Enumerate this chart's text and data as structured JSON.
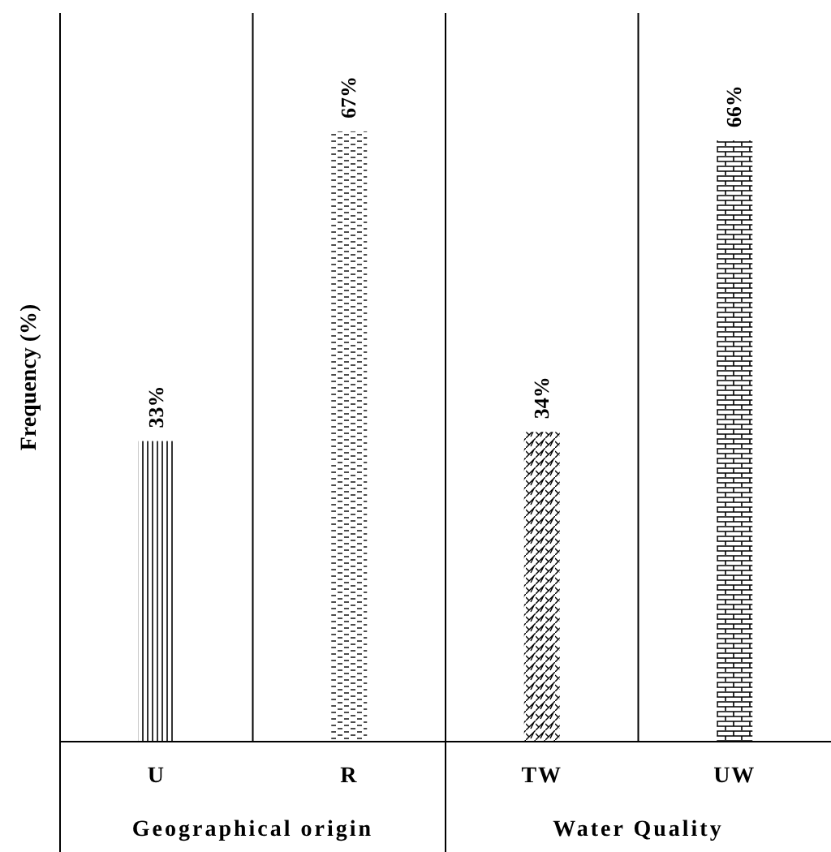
{
  "chart_data": {
    "type": "bar",
    "ylabel": "Frequency (%)",
    "categories": [
      "U",
      "R",
      "TW",
      "UW"
    ],
    "values": [
      33,
      67,
      34,
      66
    ],
    "colors": [
      "#000000",
      "#000000",
      "#000000",
      "#000000"
    ],
    "value_labels": [
      "33%",
      "67%",
      "34%",
      "66%"
    ],
    "ylim": [
      0,
      80
    ],
    "tick_labels": "x",
    "annotations": [
      "Geographical origin",
      "Water Quality"
    ]
  }
}
